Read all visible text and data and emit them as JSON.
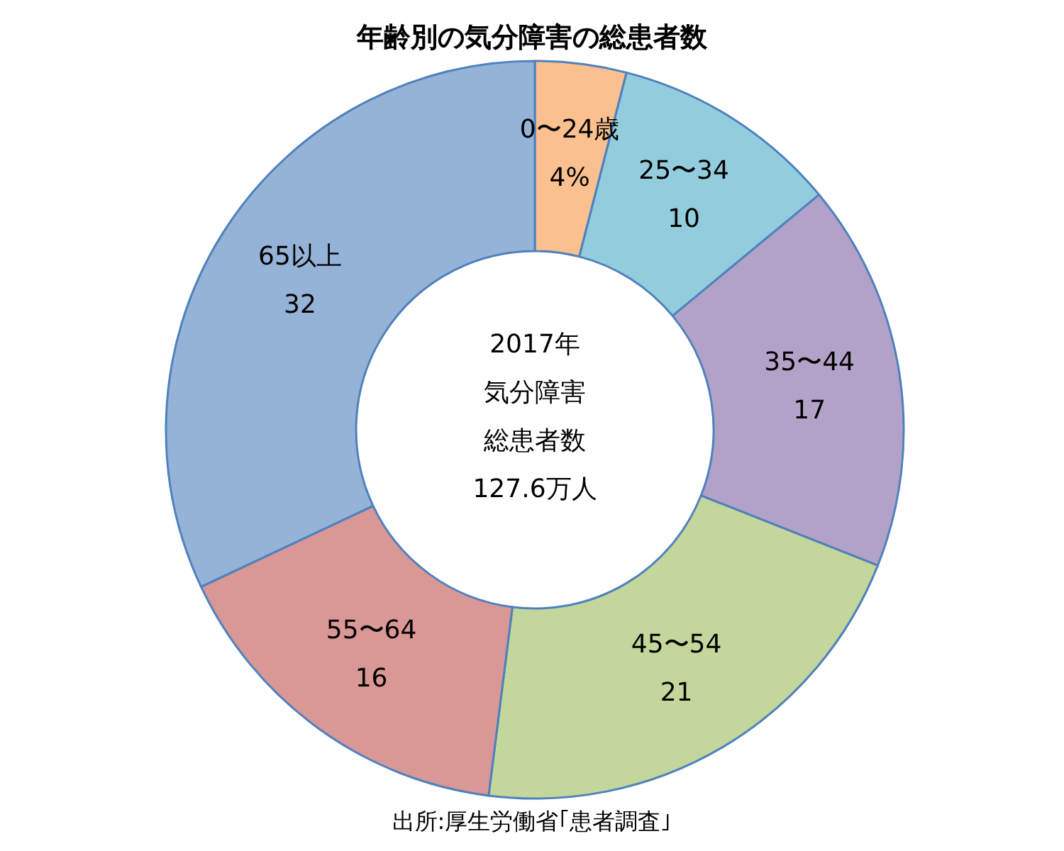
{
  "chart_data": {
    "type": "donut",
    "title": "年齢別の気分障害の総患者数",
    "categories": [
      "0〜24歳",
      "25〜34",
      "35〜44",
      "45〜54",
      "55〜64",
      "65以上"
    ],
    "values": [
      4,
      10,
      17,
      21,
      16,
      32
    ],
    "value_labels": [
      "4%",
      "10",
      "17",
      "21",
      "16",
      "32"
    ],
    "colors": [
      "#fac090",
      "#93cddd",
      "#b3a2c7",
      "#c3d69b",
      "#d99795",
      "#95b3d7"
    ],
    "annotations": [
      "2017年",
      "気分障害",
      "総患者数",
      "127.6万人",
      "出所:厚生労働省｢患者調査｣"
    ]
  }
}
